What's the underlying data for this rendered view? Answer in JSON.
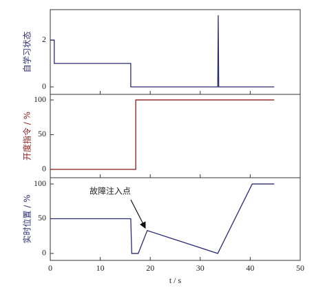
{
  "chart_data": [
    {
      "type": "line",
      "ylabel": "自学习状态",
      "label_color": "#2a2a72",
      "color": "#2a2a72",
      "x": [
        0,
        0.8,
        0.8,
        16.1,
        16.1,
        33.5,
        33.6,
        33.7,
        44.8
      ],
      "values": [
        2,
        2,
        1,
        1,
        0,
        0,
        3.06,
        0,
        0
      ],
      "xlim": [
        0,
        50
      ],
      "ylim": [
        -0.32,
        3.3
      ],
      "yticks": [
        0,
        2
      ]
    },
    {
      "type": "line",
      "ylabel": "开度指令 / %",
      "label_color": "#8b1a1a",
      "color": "#8b1a1a",
      "x": [
        0,
        17.1,
        17.1,
        44.8
      ],
      "values": [
        0,
        0,
        100,
        100
      ],
      "xlim": [
        0,
        50
      ],
      "ylim": [
        -12,
        108
      ],
      "yticks": [
        0,
        50,
        100
      ]
    },
    {
      "type": "line",
      "ylabel": "实时位置 / %",
      "label_color": "#2a2a72",
      "color": "#2a2a72",
      "xlabel": "t / s",
      "annotation": "故障注入点",
      "x": [
        0,
        16.1,
        16.3,
        17.6,
        19.4,
        33.5,
        40.4,
        44.8
      ],
      "values": [
        50,
        50,
        0,
        0,
        33,
        0,
        100,
        100
      ],
      "xlim": [
        0,
        50
      ],
      "ylim": [
        -10,
        109
      ],
      "yticks": [
        0,
        50,
        100
      ],
      "xticks": [
        0,
        10,
        20,
        30,
        40,
        50
      ]
    }
  ]
}
